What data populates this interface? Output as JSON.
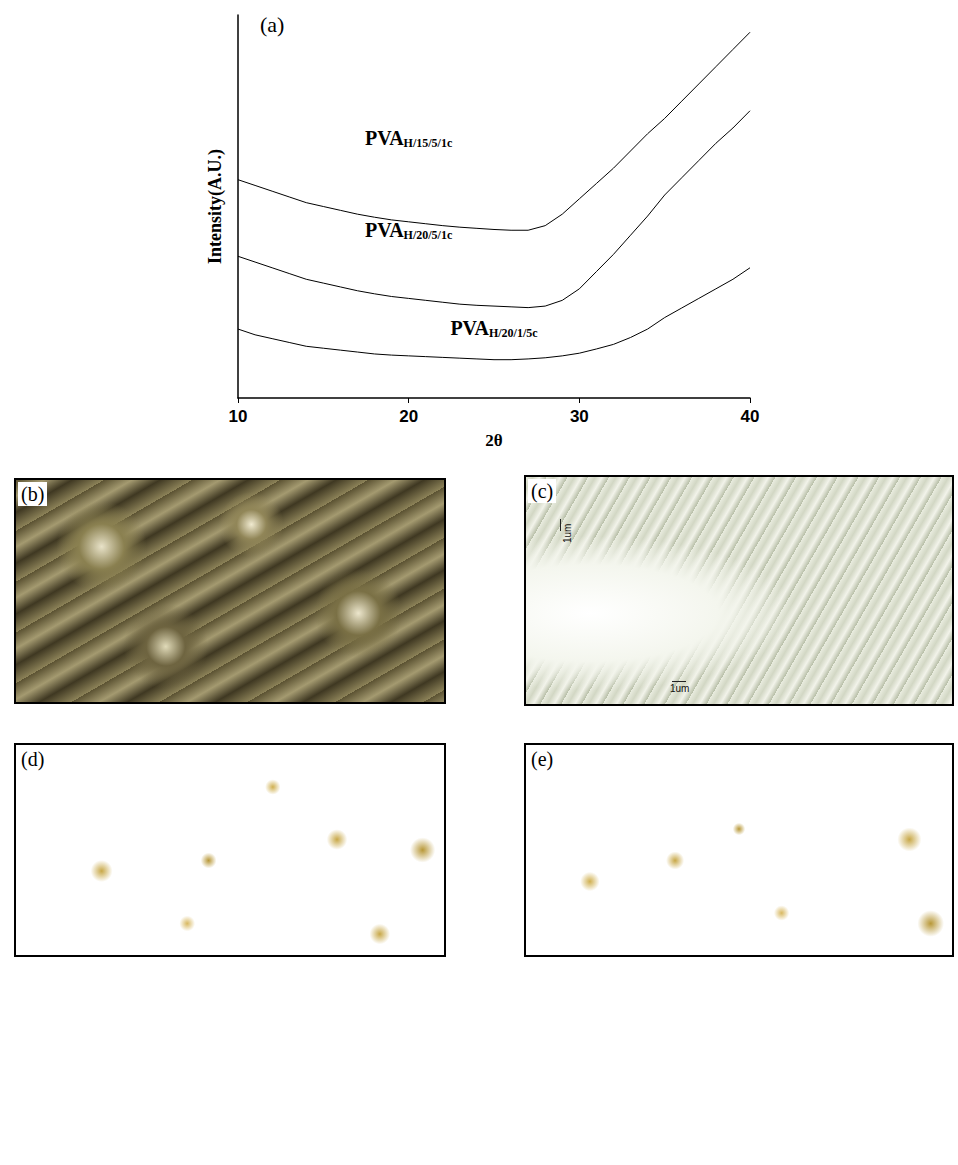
{
  "chart_data": {
    "type": "line",
    "title": "(a)",
    "xlabel": "2θ",
    "ylabel": "Intensity(A.U.)",
    "x": [
      10,
      11,
      12,
      13,
      14,
      15,
      16,
      17,
      18,
      19,
      20,
      21,
      22,
      23,
      24,
      25,
      26,
      27,
      28,
      29,
      30,
      31,
      32,
      33,
      34,
      35,
      36,
      37,
      38,
      39,
      40
    ],
    "series": [
      {
        "name": "PVAH/15/5/1c",
        "color": "#000000",
        "values": [
          57,
          55.5,
          54,
          52.5,
          51,
          50,
          49,
          48,
          47.2,
          46.5,
          46,
          45.5,
          45,
          44.6,
          44.3,
          44,
          43.8,
          43.8,
          45,
          48,
          52,
          56,
          60,
          64.5,
          69,
          73,
          77.5,
          82,
          86.5,
          91,
          95.5
        ]
      },
      {
        "name": "PVAH/20/5/1c",
        "color": "#000000",
        "values": [
          37,
          35.5,
          34,
          32.5,
          31,
          30,
          29,
          28,
          27.2,
          26.5,
          26,
          25.5,
          25,
          24.5,
          24.2,
          24,
          23.8,
          23.6,
          24,
          25.5,
          28.5,
          33,
          37.5,
          42.5,
          47.5,
          53,
          57.5,
          62,
          66.5,
          70.5,
          75
        ]
      },
      {
        "name": "PVAH/20/1/5c",
        "color": "#000000",
        "values": [
          18,
          16.5,
          15.5,
          14.5,
          13.5,
          13,
          12.5,
          12,
          11.5,
          11.2,
          11,
          10.8,
          10.6,
          10.4,
          10.2,
          10,
          10,
          10.2,
          10.5,
          11,
          11.7,
          12.8,
          14,
          15.8,
          18,
          21,
          23.5,
          26,
          28.5,
          31,
          34
        ]
      }
    ],
    "xlim": [
      10,
      40
    ],
    "xticks": [
      10,
      20,
      30,
      40
    ],
    "ylim": [
      0,
      100
    ],
    "yticks": [],
    "tick_labels": "x",
    "grid": false
  },
  "panels": [
    {
      "label": "(b)"
    },
    {
      "label": "(c)",
      "scale_labels": [
        "1um",
        "1um"
      ]
    },
    {
      "label": "(d)"
    },
    {
      "label": "(e)"
    }
  ]
}
